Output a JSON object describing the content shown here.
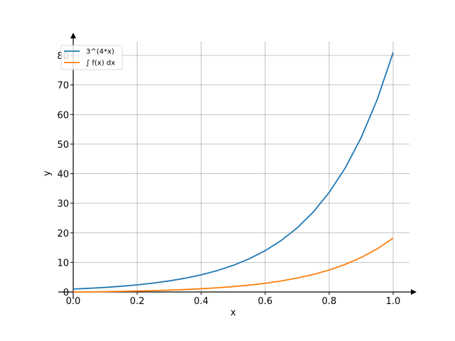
{
  "chart_data": {
    "type": "line",
    "title": "",
    "xlabel": "x",
    "ylabel": "y",
    "xlim": [
      0,
      1.05
    ],
    "ylim": [
      0,
      85
    ],
    "xticks": [
      0.0,
      0.2,
      0.4,
      0.6,
      0.8,
      1.0
    ],
    "xtick_labels": [
      "0.0",
      "0.2",
      "0.4",
      "0.6",
      "0.8",
      "1.0"
    ],
    "yticks": [
      0,
      10,
      20,
      30,
      40,
      50,
      60,
      70,
      80
    ],
    "ytick_labels": [
      "0",
      "10",
      "20",
      "30",
      "40",
      "50",
      "60",
      "70",
      "80"
    ],
    "grid": true,
    "legend_position": "top-left",
    "x": [
      0.0,
      0.05,
      0.1,
      0.15,
      0.2,
      0.25,
      0.3,
      0.35,
      0.4,
      0.45,
      0.5,
      0.55,
      0.6,
      0.65,
      0.7,
      0.75,
      0.8,
      0.85,
      0.9,
      0.95,
      1.0
    ],
    "series": [
      {
        "name": "3^(4*x)",
        "color": "#1f77b4",
        "values": [
          1.0,
          1.246,
          1.552,
          1.933,
          2.408,
          3.0,
          3.737,
          4.655,
          5.8,
          7.225,
          9.0,
          11.21,
          13.97,
          17.4,
          21.67,
          27.0,
          33.63,
          41.9,
          52.2,
          65.02,
          81.0
        ]
      },
      {
        "name": "∫ f(x) dx",
        "color": "#ff7f0e",
        "values": [
          0.0,
          0.056,
          0.126,
          0.212,
          0.32,
          0.455,
          0.623,
          0.832,
          1.093,
          1.417,
          1.821,
          2.324,
          2.951,
          3.732,
          4.705,
          5.917,
          7.427,
          9.308,
          11.651,
          14.57,
          18.206
        ]
      }
    ]
  }
}
